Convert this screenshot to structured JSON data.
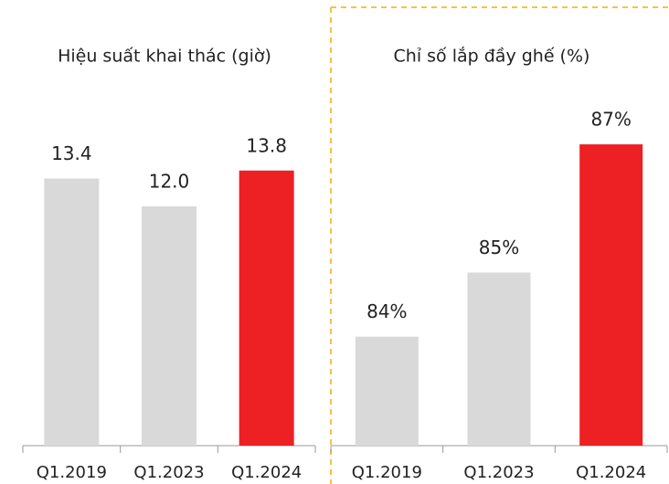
{
  "chart_data": [
    {
      "type": "bar",
      "title": "Hiệu suất khai thác (giờ)",
      "categories": [
        "Q1.2019",
        "Q1.2023",
        "Q1.2024"
      ],
      "values": [
        13.4,
        12.0,
        13.8
      ],
      "value_labels": [
        "13.4",
        "12.0",
        "13.8"
      ],
      "colors": [
        "#d9d9d9",
        "#d9d9d9",
        "#ed2024"
      ],
      "ylim": [
        0,
        16.4
      ]
    },
    {
      "type": "bar",
      "title": "Chỉ số lắp đầy ghế (%)",
      "categories": [
        "Q1.2019",
        "Q1.2023",
        "Q1.2024"
      ],
      "values": [
        84,
        85,
        87
      ],
      "value_labels": [
        "84%",
        "85%",
        "87%"
      ],
      "colors": [
        "#d9d9d9",
        "#d9d9d9",
        "#ed2024"
      ],
      "ylim": [
        82.3,
        87.4
      ]
    }
  ]
}
